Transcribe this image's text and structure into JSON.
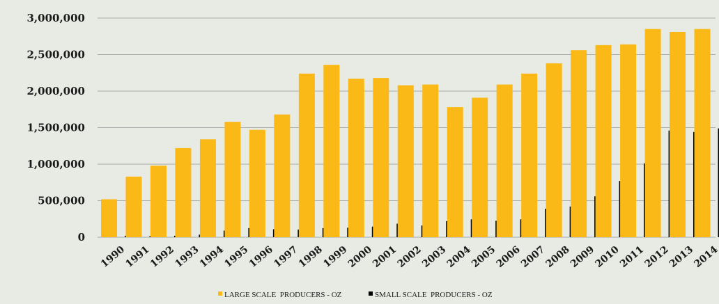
{
  "chart_data": {
    "type": "bar",
    "categories": [
      "1990",
      "1991",
      "1992",
      "1993",
      "1994",
      "1995",
      "1996",
      "1997",
      "1998",
      "1999",
      "2000",
      "2001",
      "2002",
      "2003",
      "2004",
      "2005",
      "2006",
      "2007",
      "2008",
      "2009",
      "2010",
      "2011",
      "2012",
      "2013",
      "2014"
    ],
    "series": [
      {
        "name": "LARGE SCALE  PRODUCERS - OZ",
        "color": "#fbb917",
        "values": [
          520000,
          830000,
          980000,
          1220000,
          1340000,
          1580000,
          1470000,
          1680000,
          2240000,
          2360000,
          2170000,
          2180000,
          2080000,
          2090000,
          1780000,
          1910000,
          2090000,
          2240000,
          2380000,
          2560000,
          2630000,
          2640000,
          2850000,
          2810000,
          2850000
        ]
      },
      {
        "name": "SMALL SCALE  PRODUCERS - OZ",
        "color": "#000000",
        "values": [
          20000,
          15000,
          20000,
          35000,
          90000,
          125000,
          110000,
          105000,
          125000,
          130000,
          145000,
          185000,
          160000,
          220000,
          245000,
          225000,
          245000,
          390000,
          420000,
          560000,
          770000,
          1010000,
          1460000,
          1440000,
          1490000
        ]
      }
    ],
    "ylim": [
      0,
      3000000
    ],
    "yticks": [
      0,
      500000,
      1000000,
      1500000,
      2000000,
      2500000,
      3000000
    ],
    "ytick_labels": [
      "0",
      "500,000",
      "1,000,000",
      "1,500,000",
      "2,000,000",
      "2,500,000",
      "3,000,000"
    ],
    "grid": true,
    "legend_position": "bottom",
    "title": "",
    "xlabel": "",
    "ylabel": ""
  }
}
